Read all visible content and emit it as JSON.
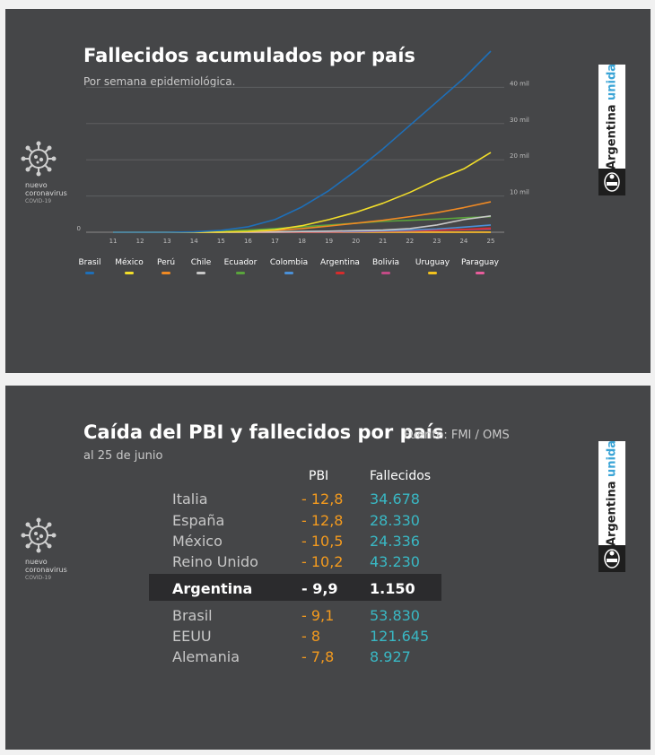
{
  "slide1": {
    "title": "Fallecidos acumulados por país",
    "subtitle": "Por semana epidemiológica.",
    "virus_label": [
      "nuevo",
      "coronavirus",
      "COVID-19"
    ],
    "brand": {
      "word1": "Argentina",
      "word2": "unida"
    }
  },
  "slide2": {
    "title": "Caída del PBI y fallecidos por país",
    "source": "Fuente: FMI / OMS",
    "subtitle": "al 25 de junio",
    "virus_label": [
      "nuevo",
      "coronavirus",
      "COVID-19"
    ],
    "brand": {
      "word1": "Argentina",
      "word2": "unida"
    },
    "headers": {
      "pbi": "PBI",
      "deaths": "Fallecidos"
    },
    "rows": [
      {
        "country": "Italia",
        "pbi": "- 12,8",
        "deaths": "34.678",
        "highlight": false
      },
      {
        "country": "España",
        "pbi": "- 12,8",
        "deaths": "28.330",
        "highlight": false
      },
      {
        "country": "México",
        "pbi": "- 10,5",
        "deaths": "24.336",
        "highlight": false
      },
      {
        "country": "Reino Unido",
        "pbi": "- 10,2",
        "deaths": "43.230",
        "highlight": false
      },
      {
        "country": "Argentina",
        "pbi": "- 9,9",
        "deaths": "1.150",
        "highlight": true
      },
      {
        "country": "Brasil",
        "pbi": "- 9,1",
        "deaths": "53.830",
        "highlight": false
      },
      {
        "country": "EEUU",
        "pbi": "- 8",
        "deaths": "121.645",
        "highlight": false
      },
      {
        "country": "Alemania",
        "pbi": "- 7,8",
        "deaths": "8.927",
        "highlight": false
      }
    ]
  },
  "chart_data": [
    {
      "type": "line",
      "title": "Fallecidos acumulados por país",
      "subtitle": "Por semana epidemiológica.",
      "x": [
        11,
        12,
        13,
        14,
        15,
        16,
        17,
        18,
        19,
        20,
        21,
        22,
        23,
        24,
        25
      ],
      "xlim": [
        10,
        25
      ],
      "ylim": [
        0,
        50000
      ],
      "y_ticks": [
        0,
        10000,
        20000,
        30000,
        40000
      ],
      "y_tick_labels": [
        "0",
        "10 mil",
        "20 mil",
        "30 mil",
        "40 mil"
      ],
      "grid": true,
      "legend_position": "bottom",
      "series": [
        {
          "name": "Brasil",
          "color": "#1e6fb8",
          "values": [
            0,
            0,
            0,
            100,
            500,
            1500,
            3500,
            7000,
            11500,
            17000,
            23000,
            29500,
            36000,
            42500,
            50000
          ]
        },
        {
          "name": "México",
          "color": "#f2de2a",
          "values": [
            0,
            0,
            0,
            0,
            50,
            200,
            700,
            1800,
            3500,
            5500,
            8000,
            11000,
            14500,
            17500,
            22000
          ]
        },
        {
          "name": "Perú",
          "color": "#f08a24",
          "values": [
            0,
            0,
            0,
            0,
            50,
            200,
            500,
            1000,
            1700,
            2500,
            3300,
            4300,
            5400,
            6800,
            8400
          ]
        },
        {
          "name": "Chile",
          "color": "#c8c8c8",
          "values": [
            0,
            0,
            0,
            0,
            20,
            50,
            100,
            200,
            300,
            450,
            600,
            1000,
            2000,
            3500,
            4500
          ]
        },
        {
          "name": "Ecuador",
          "color": "#5aa43c",
          "values": [
            0,
            0,
            0,
            50,
            200,
            600,
            1000,
            1500,
            2000,
            2500,
            3000,
            3300,
            3600,
            4000,
            4300
          ]
        },
        {
          "name": "Colombia",
          "color": "#4a90d8",
          "values": [
            0,
            0,
            0,
            0,
            20,
            50,
            100,
            200,
            250,
            300,
            400,
            600,
            900,
            1400,
            2000
          ]
        },
        {
          "name": "Argentina",
          "color": "#d62c2c",
          "values": [
            0,
            0,
            0,
            0,
            20,
            50,
            100,
            150,
            200,
            250,
            350,
            450,
            600,
            800,
            1150
          ]
        },
        {
          "name": "Bolivia",
          "color": "#c24b86",
          "values": [
            0,
            0,
            0,
            0,
            0,
            10,
            20,
            40,
            80,
            150,
            250,
            350,
            500,
            700,
            900
          ]
        },
        {
          "name": "Uruguay",
          "color": "#f2c21e",
          "values": [
            0,
            0,
            0,
            0,
            0,
            5,
            10,
            15,
            20,
            20,
            22,
            23,
            24,
            25,
            26
          ]
        },
        {
          "name": "Paraguay",
          "color": "#e85d9c",
          "values": [
            0,
            0,
            0,
            0,
            0,
            3,
            5,
            8,
            10,
            11,
            11,
            12,
            13,
            14,
            15
          ]
        }
      ]
    },
    {
      "type": "table",
      "title": "Caída del PBI y fallecidos por país",
      "columns": [
        "PBI",
        "Fallecidos"
      ],
      "rows": [
        [
          "Italia",
          "- 12,8",
          "34.678"
        ],
        [
          "España",
          "- 12,8",
          "28.330"
        ],
        [
          "México",
          "- 10,5",
          "24.336"
        ],
        [
          "Reino Unido",
          "- 10,2",
          "43.230"
        ],
        [
          "Argentina",
          "- 9,9",
          "1.150"
        ],
        [
          "Brasil",
          "- 9,1",
          "53.830"
        ],
        [
          "EEUU",
          "- 8",
          "121.645"
        ],
        [
          "Alemania",
          "- 7,8",
          "8.927"
        ]
      ]
    }
  ]
}
